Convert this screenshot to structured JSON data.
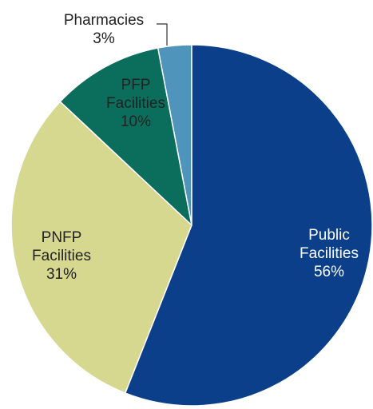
{
  "chart_data": {
    "type": "pie",
    "categories": [
      "Public Facilities",
      "PNFP Facilities",
      "PFP Facilities",
      "Pharmacies"
    ],
    "values": [
      56,
      31,
      10,
      3
    ],
    "value_labels": [
      "56%",
      "31%",
      "10%",
      "3%"
    ],
    "colors": [
      "#0b3f8a",
      "#d5d88e",
      "#0b6e5c",
      "#4f94bb"
    ]
  }
}
